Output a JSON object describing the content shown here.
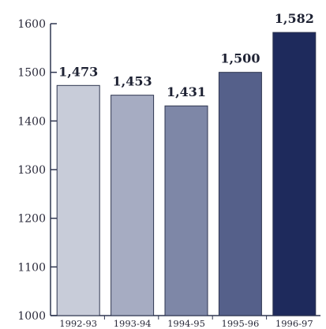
{
  "chart_data": {
    "type": "bar",
    "title": "",
    "xlabel": "",
    "ylabel": "",
    "categories": [
      "1992-93",
      "1993-94",
      "1994-95",
      "1995-96",
      "1996-97"
    ],
    "values": [
      1473,
      1453,
      1431,
      1500,
      1582
    ],
    "data_labels": [
      "1,473",
      "1,453",
      "1,431",
      "1,500",
      "1,582"
    ],
    "ylim": [
      1000,
      1600
    ],
    "yticks": [
      1000,
      1100,
      1200,
      1300,
      1400,
      1500,
      1600
    ],
    "grid": false,
    "legend": "none",
    "bar_colors": [
      "#c8ccd9",
      "#a6acc2",
      "#7e87a7",
      "#55608a",
      "#1e2a5c"
    ],
    "bar_edge_color": "#2f3650",
    "axis_color": "#2f3650"
  }
}
